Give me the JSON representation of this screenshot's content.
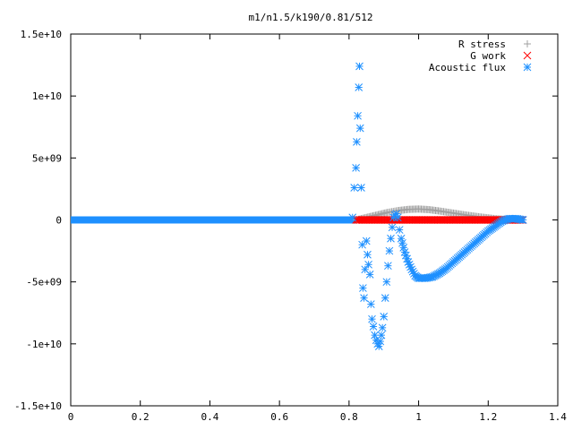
{
  "chart_data": {
    "type": "scatter",
    "title": "m1/n1.5/k190/0.81/512",
    "xlabel": "",
    "ylabel": "",
    "xlim": [
      0,
      1.4
    ],
    "ylim": [
      -15000000000.0,
      15000000000.0
    ],
    "x_ticks": [
      "0",
      "0.2",
      "0.4",
      "0.6",
      "0.8",
      "1",
      "1.2",
      "1.4"
    ],
    "x_tick_values": [
      0,
      0.2,
      0.4,
      0.6,
      0.8,
      1.0,
      1.2,
      1.4
    ],
    "y_ticks": [
      "1.5e+10",
      "1e+10",
      "5e+09",
      "0",
      "-5e+09",
      "-1e+10",
      "-1.5e+10"
    ],
    "y_tick_values": [
      15000000000.0,
      10000000000.0,
      5000000000.0,
      0,
      -5000000000.0,
      -10000000000.0,
      -15000000000.0
    ],
    "grid": false,
    "legend_position": "top-right",
    "colors": {
      "r_stress": "#a0a0a0",
      "g_work": "#ff0000",
      "acoustic_flux": "#1e90ff"
    },
    "series": [
      {
        "name": "R stress",
        "marker": "plus",
        "x": [
          0.82,
          0.85,
          0.88,
          0.91,
          0.94,
          0.97,
          1.0,
          1.03,
          1.06,
          1.1,
          1.14,
          1.18,
          1.22,
          1.26,
          1.3
        ],
        "y": [
          0.0,
          200000000.0,
          400000000.0,
          600000000.0,
          750000000.0,
          850000000.0,
          880000000.0,
          830000000.0,
          720000000.0,
          550000000.0,
          380000000.0,
          230000000.0,
          100000000.0,
          20000000.0,
          0.0
        ]
      },
      {
        "name": "G work",
        "marker": "cross",
        "x": [
          0.82,
          0.86,
          0.9,
          0.94,
          0.98,
          1.02,
          1.06,
          1.1,
          1.14,
          1.18,
          1.22,
          1.26,
          1.3
        ],
        "y": [
          0,
          0,
          0,
          0,
          0,
          0,
          0,
          0,
          0,
          0,
          0,
          0,
          0
        ]
      },
      {
        "name": "Acoustic flux",
        "marker": "star",
        "x": [
          0.81,
          0.815,
          0.82,
          0.822,
          0.825,
          0.828,
          0.83,
          0.832,
          0.835,
          0.838,
          0.84,
          0.843,
          0.846,
          0.85,
          0.853,
          0.856,
          0.86,
          0.863,
          0.866,
          0.87,
          0.874,
          0.878,
          0.882,
          0.886,
          0.89,
          0.893,
          0.896,
          0.9,
          0.904,
          0.908,
          0.912,
          0.916,
          0.92,
          0.924,
          0.928,
          0.932,
          0.936,
          0.94,
          0.945,
          0.95,
          0.96,
          0.97,
          0.98,
          0.99,
          1.0,
          1.02,
          1.04,
          1.06,
          1.08,
          1.1,
          1.12,
          1.14,
          1.16,
          1.18,
          1.2,
          1.22,
          1.24,
          1.26,
          1.28,
          1.3
        ],
        "y": [
          200000000.0,
          2600000000.0,
          4200000000.0,
          6300000000.0,
          8400000000.0,
          10700000000.0,
          12400000000.0,
          7400000000.0,
          2600000000.0,
          -2000000000.0,
          -5500000000.0,
          -6300000000.0,
          -4000000000.0,
          -1700000000.0,
          -2800000000.0,
          -3600000000.0,
          -4400000000.0,
          -6800000000.0,
          -8000000000.0,
          -8600000000.0,
          -9300000000.0,
          -9700000000.0,
          -10000000000.0,
          -10200000000.0,
          -9800000000.0,
          -9300000000.0,
          -8700000000.0,
          -7800000000.0,
          -6300000000.0,
          -5000000000.0,
          -3700000000.0,
          -2500000000.0,
          -1500000000.0,
          -600000000.0,
          200000000.0,
          400000000.0,
          500000000.0,
          200000000.0,
          -800000000.0,
          -1500000000.0,
          -2600000000.0,
          -3400000000.0,
          -4000000000.0,
          -4500000000.0,
          -4700000000.0,
          -4700000000.0,
          -4600000000.0,
          -4300000000.0,
          -3900000000.0,
          -3400000000.0,
          -2900000000.0,
          -2400000000.0,
          -1900000000.0,
          -1400000000.0,
          -900000000.0,
          -500000000.0,
          -100000000.0,
          100000000.0,
          100000000.0,
          0.0
        ]
      }
    ],
    "baseline_series": {
      "name": "Acoustic flux",
      "x_range": [
        0,
        0.82
      ],
      "y": 0
    }
  }
}
